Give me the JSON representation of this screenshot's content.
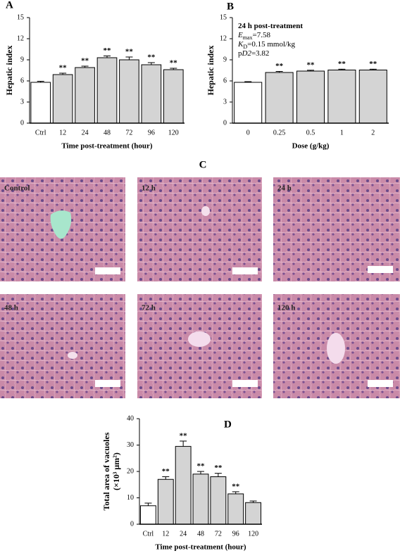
{
  "chart_data": [
    {
      "type": "bar",
      "panel": "A",
      "ylabel": [
        "Hepatic index"
      ],
      "xlabel": "Time post-treatment (hour)",
      "categories": [
        "Ctrl",
        "12",
        "24",
        "48",
        "72",
        "96",
        "120"
      ],
      "values": [
        5.8,
        6.9,
        7.9,
        9.3,
        9.0,
        8.3,
        7.6
      ],
      "errors": [
        0.15,
        0.2,
        0.2,
        0.25,
        0.4,
        0.3,
        0.2
      ],
      "colors": [
        "#ffffff",
        "#d4d4d4",
        "#d4d4d4",
        "#d4d4d4",
        "#d4d4d4",
        "#d4d4d4",
        "#d4d4d4"
      ],
      "significance": [
        null,
        "**",
        "**",
        "**",
        "**",
        "**",
        "**"
      ],
      "ylim": [
        0,
        15
      ],
      "yticks": [
        0,
        3,
        6,
        9,
        12,
        15
      ]
    },
    {
      "type": "bar",
      "panel": "B",
      "ylabel": [
        "Hepatic index"
      ],
      "xlabel": "Dose (g/kg)",
      "categories": [
        "0",
        "0.25",
        "0.5",
        "1",
        "2"
      ],
      "values": [
        5.8,
        7.2,
        7.4,
        7.55,
        7.55
      ],
      "errors": [
        0.1,
        0.15,
        0.12,
        0.12,
        0.12
      ],
      "colors": [
        "#ffffff",
        "#d4d4d4",
        "#d4d4d4",
        "#d4d4d4",
        "#d4d4d4"
      ],
      "significance": [
        null,
        "**",
        "**",
        "**",
        "**"
      ],
      "annotations": [
        [
          {
            "text": "24 h post-treatment",
            "bold": true
          }
        ],
        [
          {
            "text": "E",
            "italic": true
          },
          {
            "text": "max",
            "sub": true
          },
          {
            "text": "=7.58"
          }
        ],
        [
          {
            "text": "K",
            "italic": true
          },
          {
            "text": "D",
            "sub": true
          },
          {
            "text": "=0.15 mmol/kg"
          }
        ],
        [
          {
            "text": "p"
          },
          {
            "text": "D2",
            "italic": true
          },
          {
            "text": "=3.82"
          }
        ]
      ],
      "ylim": [
        0,
        15
      ],
      "yticks": [
        0,
        3,
        6,
        9,
        12,
        15
      ]
    },
    {
      "type": "bar",
      "panel": "D",
      "ylabel": [
        "Total  area of vacuoles",
        "(×10³ μm²)"
      ],
      "xlabel": "Time post-treatment (hour)",
      "categories": [
        "Ctrl",
        "12",
        "24",
        "48",
        "72",
        "96",
        "120"
      ],
      "values": [
        7,
        17,
        29.5,
        19,
        18,
        11.5,
        8.2
      ],
      "errors": [
        1,
        1,
        2,
        1,
        1.3,
        0.8,
        0.6
      ],
      "colors": [
        "#ffffff",
        "#d4d4d4",
        "#d4d4d4",
        "#d4d4d4",
        "#d4d4d4",
        "#d4d4d4",
        "#d4d4d4"
      ],
      "significance": [
        null,
        "**",
        "**",
        "**",
        "**",
        "**",
        null
      ],
      "ylim": [
        0,
        40
      ],
      "yticks": [
        0,
        10,
        20,
        30,
        40
      ]
    }
  ],
  "histology": {
    "panel": "C",
    "panels": [
      "Control",
      "12 h",
      "24 h",
      "48 h",
      "72 h",
      "120 h"
    ]
  }
}
